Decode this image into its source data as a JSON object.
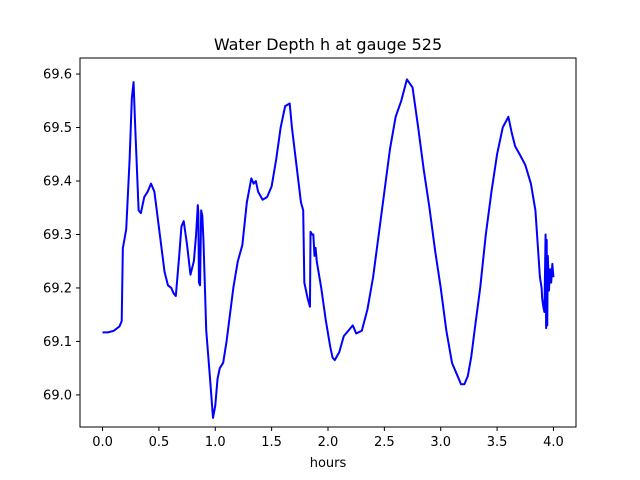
{
  "chart_data": {
    "type": "line",
    "title": "Water Depth h at gauge 525",
    "xlabel": "hours",
    "ylabel": "",
    "xlim": [
      -0.2,
      4.2
    ],
    "ylim": [
      68.94,
      69.63
    ],
    "xticks": [
      0.0,
      0.5,
      1.0,
      1.5,
      2.0,
      2.5,
      3.0,
      3.5,
      4.0
    ],
    "xtick_labels": [
      "0.0",
      "0.5",
      "1.0",
      "1.5",
      "2.0",
      "2.5",
      "3.0",
      "3.5",
      "4.0"
    ],
    "yticks": [
      69.0,
      69.1,
      69.2,
      69.3,
      69.4,
      69.5,
      69.6
    ],
    "ytick_labels": [
      "69.0",
      "69.1",
      "69.2",
      "69.3",
      "69.4",
      "69.5",
      "69.6"
    ],
    "grid": false,
    "legend": "none",
    "series": [
      {
        "color": "#0000ff",
        "x": [
          0.0,
          0.05,
          0.1,
          0.15,
          0.17,
          0.18,
          0.185,
          0.21,
          0.24,
          0.26,
          0.275,
          0.29,
          0.32,
          0.34,
          0.37,
          0.4,
          0.43,
          0.46,
          0.49,
          0.52,
          0.55,
          0.58,
          0.61,
          0.63,
          0.65,
          0.68,
          0.7,
          0.72,
          0.75,
          0.78,
          0.81,
          0.83,
          0.845,
          0.85,
          0.855,
          0.865,
          0.875,
          0.885,
          0.895,
          0.92,
          0.95,
          0.98,
          1.0,
          1.02,
          1.04,
          1.07,
          1.1,
          1.13,
          1.16,
          1.2,
          1.24,
          1.28,
          1.32,
          1.34,
          1.36,
          1.38,
          1.42,
          1.46,
          1.5,
          1.54,
          1.58,
          1.62,
          1.66,
          1.68,
          1.72,
          1.76,
          1.78,
          1.79,
          1.8,
          1.82,
          1.84,
          1.845,
          1.86,
          1.87,
          1.88,
          1.89,
          1.9,
          1.94,
          1.98,
          2.02,
          2.04,
          2.06,
          2.1,
          2.14,
          2.18,
          2.22,
          2.25,
          2.3,
          2.35,
          2.4,
          2.45,
          2.5,
          2.55,
          2.6,
          2.65,
          2.7,
          2.75,
          2.8,
          2.85,
          2.9,
          2.95,
          3.0,
          3.05,
          3.1,
          3.15,
          3.18,
          3.21,
          3.24,
          3.27,
          3.3,
          3.35,
          3.4,
          3.45,
          3.5,
          3.55,
          3.6,
          3.63,
          3.66,
          3.7,
          3.75,
          3.8,
          3.84,
          3.88,
          3.895,
          3.9,
          3.91,
          3.92,
          3.93,
          3.935,
          3.94,
          3.945,
          3.95,
          3.96,
          3.97,
          3.98,
          3.99,
          4.0
        ],
        "y": [
          69.117,
          69.117,
          69.12,
          69.128,
          69.138,
          69.275,
          69.28,
          69.31,
          69.44,
          69.555,
          69.585,
          69.5,
          69.345,
          69.34,
          69.37,
          69.38,
          69.395,
          69.38,
          69.33,
          69.28,
          69.23,
          69.205,
          69.2,
          69.19,
          69.185,
          69.26,
          69.315,
          69.325,
          69.28,
          69.225,
          69.25,
          69.3,
          69.355,
          69.34,
          69.21,
          69.205,
          69.345,
          69.335,
          69.29,
          69.12,
          69.04,
          68.957,
          68.98,
          69.03,
          69.05,
          69.06,
          69.1,
          69.15,
          69.2,
          69.25,
          69.28,
          69.36,
          69.405,
          69.395,
          69.4,
          69.38,
          69.365,
          69.37,
          69.39,
          69.44,
          69.5,
          69.54,
          69.545,
          69.5,
          69.43,
          69.36,
          69.345,
          69.21,
          69.2,
          69.18,
          69.165,
          69.305,
          69.3,
          69.3,
          69.26,
          69.275,
          69.25,
          69.2,
          69.14,
          69.09,
          69.07,
          69.065,
          69.08,
          69.11,
          69.12,
          69.13,
          69.115,
          69.12,
          69.16,
          69.22,
          69.3,
          69.38,
          69.46,
          69.52,
          69.55,
          69.59,
          69.575,
          69.5,
          69.42,
          69.35,
          69.27,
          69.2,
          69.12,
          69.06,
          69.035,
          69.02,
          69.02,
          69.035,
          69.07,
          69.12,
          69.2,
          69.3,
          69.38,
          69.45,
          69.5,
          69.52,
          69.49,
          69.465,
          69.45,
          69.43,
          69.395,
          69.345,
          69.22,
          69.2,
          69.18,
          69.165,
          69.155,
          69.3,
          69.125,
          69.29,
          69.13,
          69.26,
          69.195,
          69.235,
          69.21,
          69.245,
          69.22
        ]
      }
    ]
  }
}
